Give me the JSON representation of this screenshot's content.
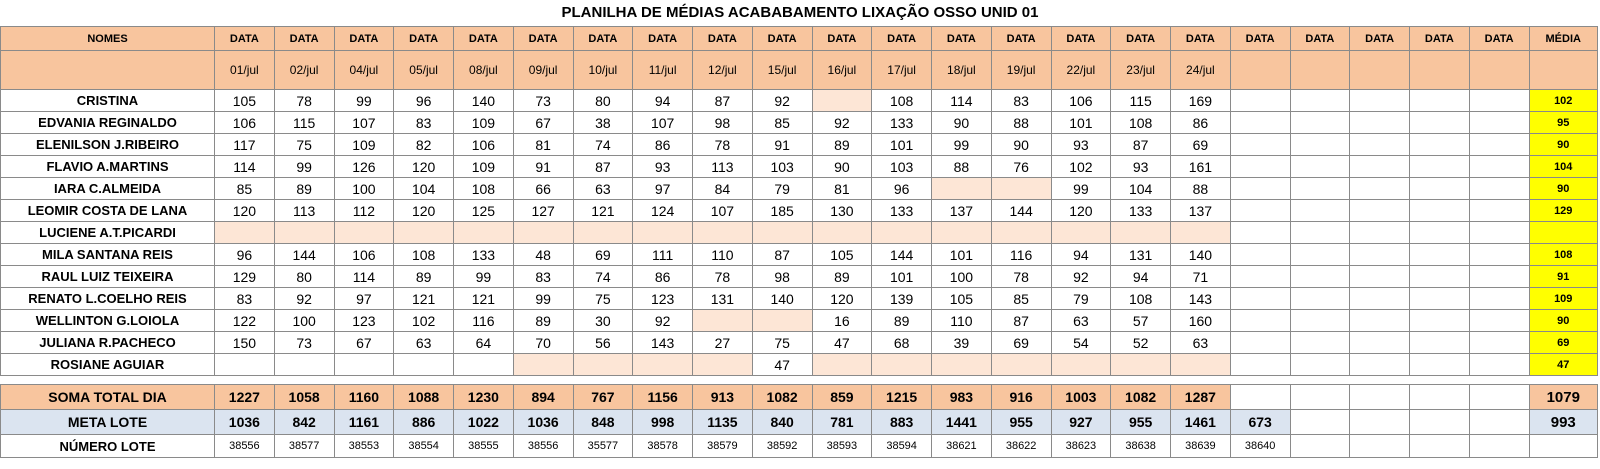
{
  "title": "PLANILHA DE MÉDIAS ACABABAMENTO LIXAÇÃO OSSO UNID 01",
  "header": {
    "nomes": "NOMES",
    "data_label": "DATA",
    "media_label": "MÉDIA",
    "dates": [
      "01/jul",
      "02/jul",
      "04/jul",
      "05/jul",
      "08/jul",
      "09/jul",
      "10/jul",
      "11/jul",
      "12/jul",
      "15/jul",
      "16/jul",
      "17/jul",
      "18/jul",
      "19/jul",
      "22/jul",
      "23/jul",
      "24/jul",
      "",
      "",
      "",
      "",
      ""
    ]
  },
  "rows": [
    {
      "name": "CRISTINA",
      "media": "102",
      "values": [
        "105",
        "78",
        "99",
        "96",
        "140",
        "73",
        "80",
        "94",
        "87",
        "92",
        null,
        "108",
        "114",
        "83",
        "106",
        "115",
        "169"
      ]
    },
    {
      "name": "EDVANIA REGINALDO",
      "media": "95",
      "values": [
        "106",
        "115",
        "107",
        "83",
        "109",
        "67",
        "38",
        "107",
        "98",
        "85",
        "92",
        "133",
        "90",
        "88",
        "101",
        "108",
        "86"
      ]
    },
    {
      "name": "ELENILSON J.RIBEIRO",
      "media": "90",
      "values": [
        "117",
        "75",
        "109",
        "82",
        "106",
        "81",
        "74",
        "86",
        "78",
        "91",
        "89",
        "101",
        "99",
        "90",
        "93",
        "87",
        "69"
      ]
    },
    {
      "name": "FLAVIO A.MARTINS",
      "media": "104",
      "values": [
        "114",
        "99",
        "126",
        "120",
        "109",
        "91",
        "87",
        "93",
        "113",
        "103",
        "90",
        "103",
        "88",
        "76",
        "102",
        "93",
        "161"
      ]
    },
    {
      "name": "IARA C.ALMEIDA",
      "media": "90",
      "values": [
        "85",
        "89",
        "100",
        "104",
        "108",
        "66",
        "63",
        "97",
        "84",
        "79",
        "81",
        "96",
        null,
        null,
        "99",
        "104",
        "88"
      ]
    },
    {
      "name": "LEOMIR COSTA DE LANA",
      "media": "129",
      "values": [
        "120",
        "113",
        "112",
        "120",
        "125",
        "127",
        "121",
        "124",
        "107",
        "185",
        "130",
        "133",
        "137",
        "144",
        "120",
        "133",
        "137"
      ]
    },
    {
      "name": "LUCIENE A.T.PICARDI",
      "media": "",
      "values": [
        null,
        null,
        null,
        null,
        null,
        null,
        null,
        null,
        null,
        null,
        null,
        null,
        null,
        null,
        null,
        null,
        null
      ]
    },
    {
      "name": "MILA SANTANA REIS",
      "media": "108",
      "values": [
        "96",
        "144",
        "106",
        "108",
        "133",
        "48",
        "69",
        "111",
        "110",
        "87",
        "105",
        "144",
        "101",
        "116",
        "94",
        "131",
        "140"
      ]
    },
    {
      "name": "RAUL LUIZ TEIXEIRA",
      "media": "91",
      "values": [
        "129",
        "80",
        "114",
        "89",
        "99",
        "83",
        "74",
        "86",
        "78",
        "98",
        "89",
        "101",
        "100",
        "78",
        "92",
        "94",
        "71"
      ]
    },
    {
      "name": "RENATO L.COELHO REIS",
      "media": "109",
      "values": [
        "83",
        "92",
        "97",
        "121",
        "121",
        "99",
        "75",
        "123",
        "131",
        "140",
        "120",
        "139",
        "105",
        "85",
        "79",
        "108",
        "143"
      ]
    },
    {
      "name": "WELLINTON G.LOIOLA",
      "media": "90",
      "values": [
        "122",
        "100",
        "123",
        "102",
        "116",
        "89",
        "30",
        "92",
        null,
        null,
        "16",
        "89",
        "110",
        "87",
        "63",
        "57",
        "160"
      ]
    },
    {
      "name": "JULIANA R.PACHECO",
      "media": "69",
      "values": [
        "150",
        "73",
        "67",
        "63",
        "64",
        "70",
        "56",
        "143",
        "27",
        "75",
        "47",
        "68",
        "39",
        "69",
        "54",
        "52",
        "63"
      ]
    },
    {
      "name": "ROSIANE AGUIAR",
      "media": "47",
      "values": [
        "",
        "",
        "",
        "",
        "",
        null,
        null,
        null,
        null,
        "47",
        null,
        null,
        null,
        null,
        null,
        null,
        null
      ]
    }
  ],
  "soma": {
    "label": "SOMA TOTAL DIA",
    "values": [
      "1227",
      "1058",
      "1160",
      "1088",
      "1230",
      "894",
      "767",
      "1156",
      "913",
      "1082",
      "859",
      "1215",
      "983",
      "916",
      "1003",
      "1082",
      "1287"
    ],
    "media": "1079"
  },
  "meta": {
    "label": "META LOTE",
    "values": [
      "1036",
      "842",
      "1161",
      "886",
      "1022",
      "1036",
      "848",
      "998",
      "1135",
      "840",
      "781",
      "883",
      "1441",
      "955",
      "927",
      "955",
      "1461",
      "673"
    ],
    "media": "993"
  },
  "lote": {
    "label": "NÚMERO LOTE",
    "values": [
      "38556",
      "38577",
      "38553",
      "38554",
      "38555",
      "38556",
      "35577",
      "38578",
      "38579",
      "38592",
      "38593",
      "38594",
      "38621",
      "38622",
      "38623",
      "38638",
      "38639",
      "38640"
    ]
  }
}
